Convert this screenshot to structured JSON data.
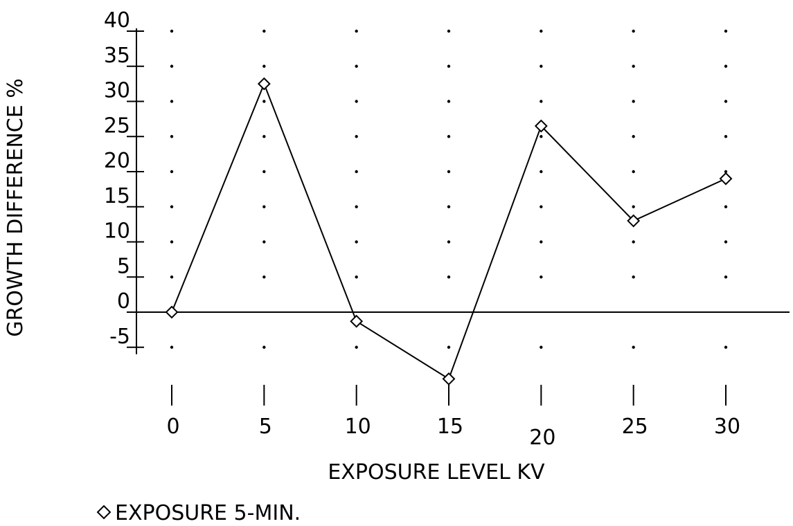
{
  "chart_data": {
    "type": "line",
    "title": "",
    "xlabel": "EXPOSURE LEVEL KV",
    "ylabel": "GROWTH DIFFERENCE %",
    "x": [
      0,
      5,
      10,
      15,
      20,
      25,
      30
    ],
    "x_tick_labels": [
      "0",
      "5",
      "10",
      "15",
      "20",
      "25",
      "30"
    ],
    "y_ticks": [
      -5,
      0,
      5,
      10,
      15,
      20,
      25,
      30,
      35,
      40
    ],
    "y_tick_labels": [
      "-5",
      "0",
      "5",
      "10",
      "15",
      "20",
      "25",
      "30",
      "35",
      "40"
    ],
    "xlim": [
      0,
      30
    ],
    "ylim": [
      -5,
      40
    ],
    "grid": "dotted",
    "legend_position": "bottom-left",
    "series": [
      {
        "name": "EXPOSURE 5-MIN.",
        "marker": "diamond",
        "color": "#000000",
        "values": [
          0,
          32.5,
          -1.3,
          -9.5,
          26.5,
          13,
          19
        ]
      }
    ]
  }
}
